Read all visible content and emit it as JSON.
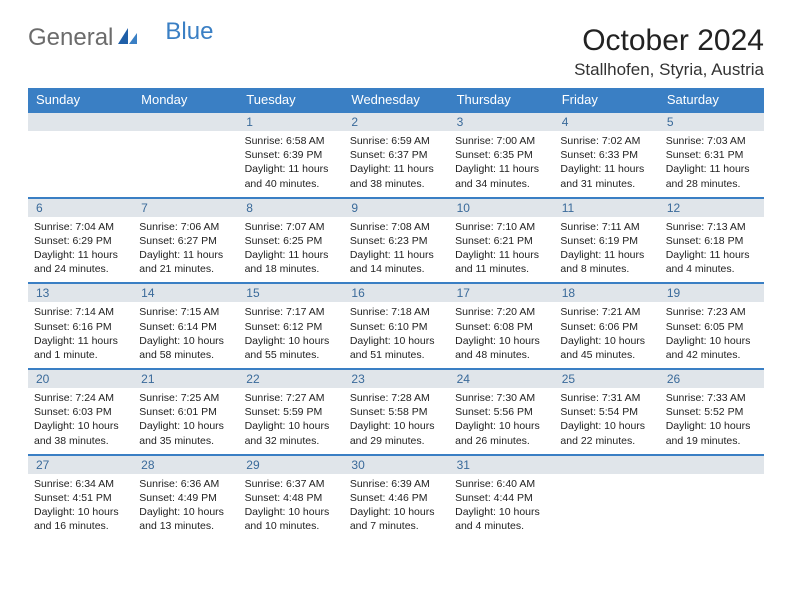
{
  "logo": {
    "part1": "General",
    "part2": "Blue"
  },
  "title": "October 2024",
  "location": "Stallhofen, Styria, Austria",
  "colors": {
    "header_bg": "#3a7fc4",
    "daynum_bg": "#e0e5ea",
    "daynum_color": "#3a6a9a",
    "border": "#3a7fc4",
    "text": "#222222",
    "logo_gray": "#6b6b6b",
    "logo_blue": "#3a7fc4"
  },
  "dayheads": [
    "Sunday",
    "Monday",
    "Tuesday",
    "Wednesday",
    "Thursday",
    "Friday",
    "Saturday"
  ],
  "weeks": [
    [
      {
        "n": "",
        "l": []
      },
      {
        "n": "",
        "l": []
      },
      {
        "n": "1",
        "l": [
          "Sunrise: 6:58 AM",
          "Sunset: 6:39 PM",
          "Daylight: 11 hours",
          "and 40 minutes."
        ]
      },
      {
        "n": "2",
        "l": [
          "Sunrise: 6:59 AM",
          "Sunset: 6:37 PM",
          "Daylight: 11 hours",
          "and 38 minutes."
        ]
      },
      {
        "n": "3",
        "l": [
          "Sunrise: 7:00 AM",
          "Sunset: 6:35 PM",
          "Daylight: 11 hours",
          "and 34 minutes."
        ]
      },
      {
        "n": "4",
        "l": [
          "Sunrise: 7:02 AM",
          "Sunset: 6:33 PM",
          "Daylight: 11 hours",
          "and 31 minutes."
        ]
      },
      {
        "n": "5",
        "l": [
          "Sunrise: 7:03 AM",
          "Sunset: 6:31 PM",
          "Daylight: 11 hours",
          "and 28 minutes."
        ]
      }
    ],
    [
      {
        "n": "6",
        "l": [
          "Sunrise: 7:04 AM",
          "Sunset: 6:29 PM",
          "Daylight: 11 hours",
          "and 24 minutes."
        ]
      },
      {
        "n": "7",
        "l": [
          "Sunrise: 7:06 AM",
          "Sunset: 6:27 PM",
          "Daylight: 11 hours",
          "and 21 minutes."
        ]
      },
      {
        "n": "8",
        "l": [
          "Sunrise: 7:07 AM",
          "Sunset: 6:25 PM",
          "Daylight: 11 hours",
          "and 18 minutes."
        ]
      },
      {
        "n": "9",
        "l": [
          "Sunrise: 7:08 AM",
          "Sunset: 6:23 PM",
          "Daylight: 11 hours",
          "and 14 minutes."
        ]
      },
      {
        "n": "10",
        "l": [
          "Sunrise: 7:10 AM",
          "Sunset: 6:21 PM",
          "Daylight: 11 hours",
          "and 11 minutes."
        ]
      },
      {
        "n": "11",
        "l": [
          "Sunrise: 7:11 AM",
          "Sunset: 6:19 PM",
          "Daylight: 11 hours",
          "and 8 minutes."
        ]
      },
      {
        "n": "12",
        "l": [
          "Sunrise: 7:13 AM",
          "Sunset: 6:18 PM",
          "Daylight: 11 hours",
          "and 4 minutes."
        ]
      }
    ],
    [
      {
        "n": "13",
        "l": [
          "Sunrise: 7:14 AM",
          "Sunset: 6:16 PM",
          "Daylight: 11 hours",
          "and 1 minute."
        ]
      },
      {
        "n": "14",
        "l": [
          "Sunrise: 7:15 AM",
          "Sunset: 6:14 PM",
          "Daylight: 10 hours",
          "and 58 minutes."
        ]
      },
      {
        "n": "15",
        "l": [
          "Sunrise: 7:17 AM",
          "Sunset: 6:12 PM",
          "Daylight: 10 hours",
          "and 55 minutes."
        ]
      },
      {
        "n": "16",
        "l": [
          "Sunrise: 7:18 AM",
          "Sunset: 6:10 PM",
          "Daylight: 10 hours",
          "and 51 minutes."
        ]
      },
      {
        "n": "17",
        "l": [
          "Sunrise: 7:20 AM",
          "Sunset: 6:08 PM",
          "Daylight: 10 hours",
          "and 48 minutes."
        ]
      },
      {
        "n": "18",
        "l": [
          "Sunrise: 7:21 AM",
          "Sunset: 6:06 PM",
          "Daylight: 10 hours",
          "and 45 minutes."
        ]
      },
      {
        "n": "19",
        "l": [
          "Sunrise: 7:23 AM",
          "Sunset: 6:05 PM",
          "Daylight: 10 hours",
          "and 42 minutes."
        ]
      }
    ],
    [
      {
        "n": "20",
        "l": [
          "Sunrise: 7:24 AM",
          "Sunset: 6:03 PM",
          "Daylight: 10 hours",
          "and 38 minutes."
        ]
      },
      {
        "n": "21",
        "l": [
          "Sunrise: 7:25 AM",
          "Sunset: 6:01 PM",
          "Daylight: 10 hours",
          "and 35 minutes."
        ]
      },
      {
        "n": "22",
        "l": [
          "Sunrise: 7:27 AM",
          "Sunset: 5:59 PM",
          "Daylight: 10 hours",
          "and 32 minutes."
        ]
      },
      {
        "n": "23",
        "l": [
          "Sunrise: 7:28 AM",
          "Sunset: 5:58 PM",
          "Daylight: 10 hours",
          "and 29 minutes."
        ]
      },
      {
        "n": "24",
        "l": [
          "Sunrise: 7:30 AM",
          "Sunset: 5:56 PM",
          "Daylight: 10 hours",
          "and 26 minutes."
        ]
      },
      {
        "n": "25",
        "l": [
          "Sunrise: 7:31 AM",
          "Sunset: 5:54 PM",
          "Daylight: 10 hours",
          "and 22 minutes."
        ]
      },
      {
        "n": "26",
        "l": [
          "Sunrise: 7:33 AM",
          "Sunset: 5:52 PM",
          "Daylight: 10 hours",
          "and 19 minutes."
        ]
      }
    ],
    [
      {
        "n": "27",
        "l": [
          "Sunrise: 6:34 AM",
          "Sunset: 4:51 PM",
          "Daylight: 10 hours",
          "and 16 minutes."
        ]
      },
      {
        "n": "28",
        "l": [
          "Sunrise: 6:36 AM",
          "Sunset: 4:49 PM",
          "Daylight: 10 hours",
          "and 13 minutes."
        ]
      },
      {
        "n": "29",
        "l": [
          "Sunrise: 6:37 AM",
          "Sunset: 4:48 PM",
          "Daylight: 10 hours",
          "and 10 minutes."
        ]
      },
      {
        "n": "30",
        "l": [
          "Sunrise: 6:39 AM",
          "Sunset: 4:46 PM",
          "Daylight: 10 hours",
          "and 7 minutes."
        ]
      },
      {
        "n": "31",
        "l": [
          "Sunrise: 6:40 AM",
          "Sunset: 4:44 PM",
          "Daylight: 10 hours",
          "and 4 minutes."
        ]
      },
      {
        "n": "",
        "l": []
      },
      {
        "n": "",
        "l": []
      }
    ]
  ]
}
